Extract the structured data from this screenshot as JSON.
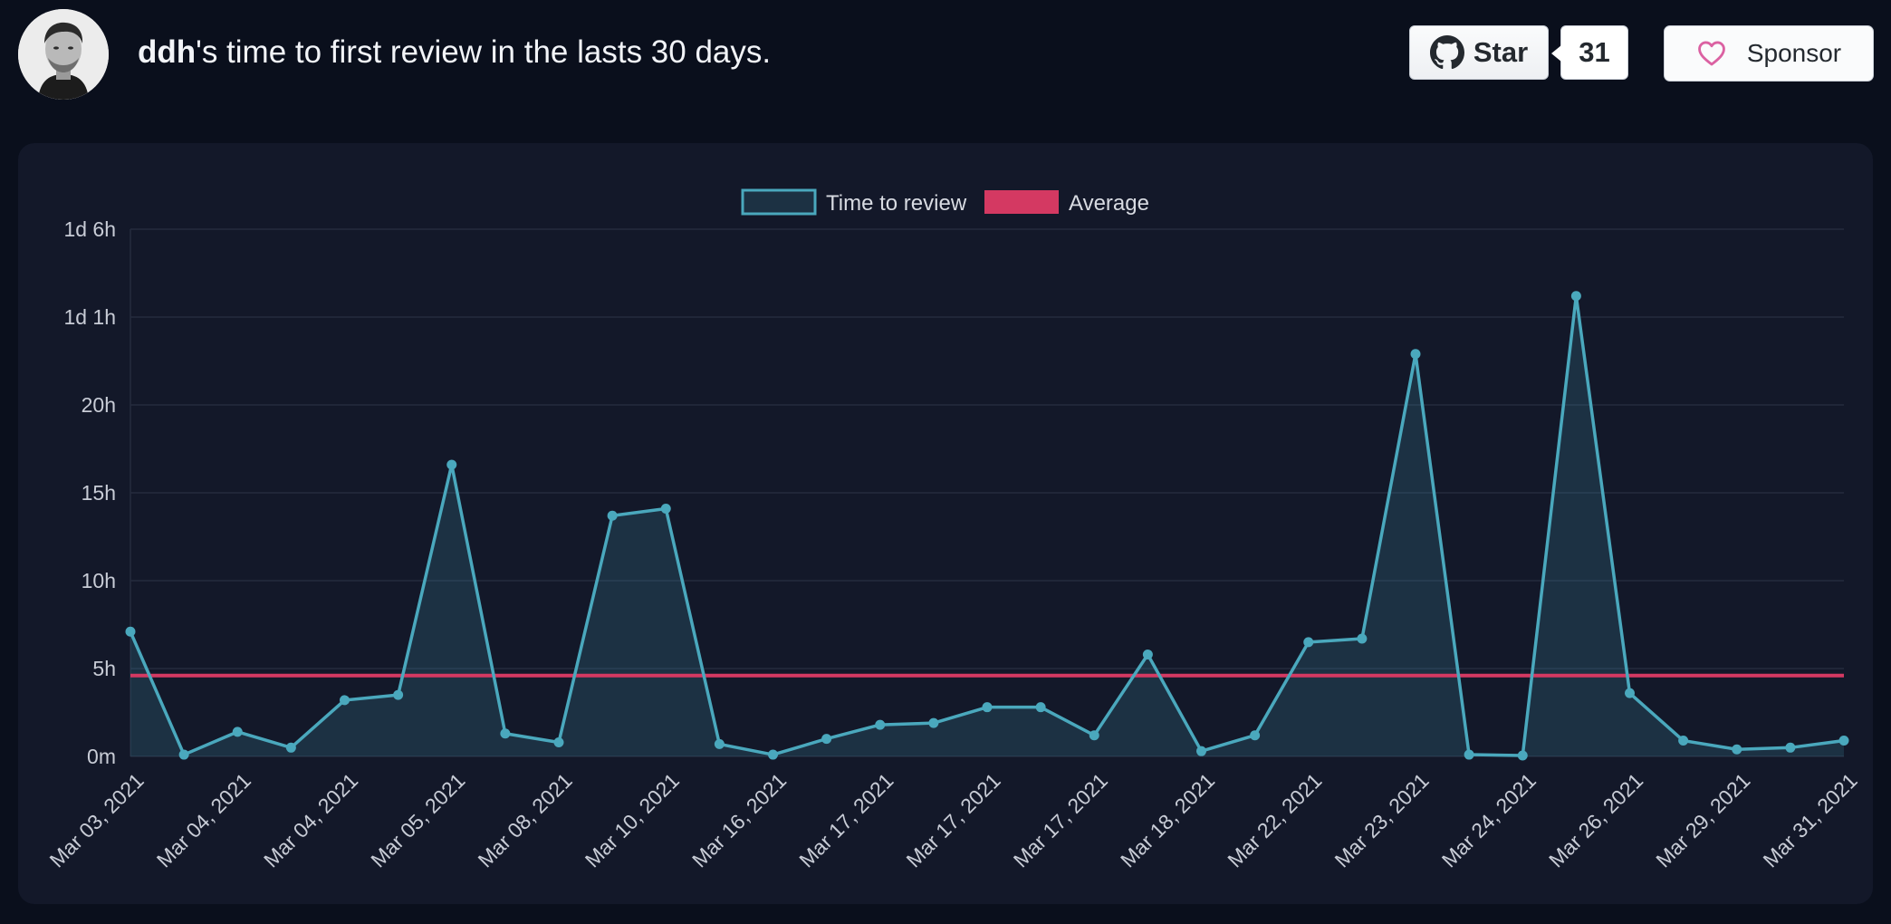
{
  "header": {
    "username": "ddh",
    "title_suffix": "'s time to first review in the lasts 30 days.",
    "star_label": "Star",
    "star_count": "31",
    "sponsor_label": "Sponsor"
  },
  "icons": {
    "star_button_icon": "github-mark-icon",
    "sponsor_button_icon": "heart-outline-icon"
  },
  "colors": {
    "page_background": "#0a0f1c",
    "card_background": "#131829",
    "series_line": "#4aa8bd",
    "series_fill": "rgba(74,168,189,0.18)",
    "average_line": "#d43962",
    "grid": "#242a3d",
    "sponsor_heart": "#db61a2"
  },
  "chart_data": {
    "type": "area",
    "title": "",
    "xlabel": "",
    "ylabel": "",
    "ylim_hours": [
      0,
      30
    ],
    "y_ticks": [
      {
        "value": 0,
        "label": "0m"
      },
      {
        "value": 5,
        "label": "5h"
      },
      {
        "value": 10,
        "label": "10h"
      },
      {
        "value": 15,
        "label": "15h"
      },
      {
        "value": 20,
        "label": "20h"
      },
      {
        "value": 25,
        "label": "1d 1h"
      },
      {
        "value": 30,
        "label": "1d 6h"
      }
    ],
    "x_tick_labels": [
      "Mar 03, 2021",
      "Mar 04, 2021",
      "Mar 04, 2021",
      "Mar 05, 2021",
      "Mar 08, 2021",
      "Mar 10, 2021",
      "Mar 16, 2021",
      "Mar 17, 2021",
      "Mar 17, 2021",
      "Mar 17, 2021",
      "Mar 18, 2021",
      "Mar 22, 2021",
      "Mar 23, 2021",
      "Mar 24, 2021",
      "Mar 26, 2021",
      "Mar 29, 2021",
      "Mar 31, 2021"
    ],
    "grid": true,
    "legend_position": "top-center",
    "legend": [
      "Time to review",
      "Average"
    ],
    "series": [
      {
        "name": "Time to review",
        "unit": "hours",
        "values": [
          7.1,
          0.1,
          1.4,
          0.5,
          3.2,
          3.5,
          16.6,
          1.3,
          0.8,
          13.7,
          14.1,
          0.7,
          0.1,
          1.0,
          1.8,
          1.9,
          2.8,
          2.8,
          1.2,
          5.8,
          0.3,
          1.2,
          6.5,
          6.7,
          22.9,
          0.1,
          0.05,
          26.2,
          3.6,
          0.9,
          0.4,
          0.5,
          0.9
        ]
      },
      {
        "name": "Average",
        "unit": "hours",
        "value": 4.6
      }
    ]
  }
}
